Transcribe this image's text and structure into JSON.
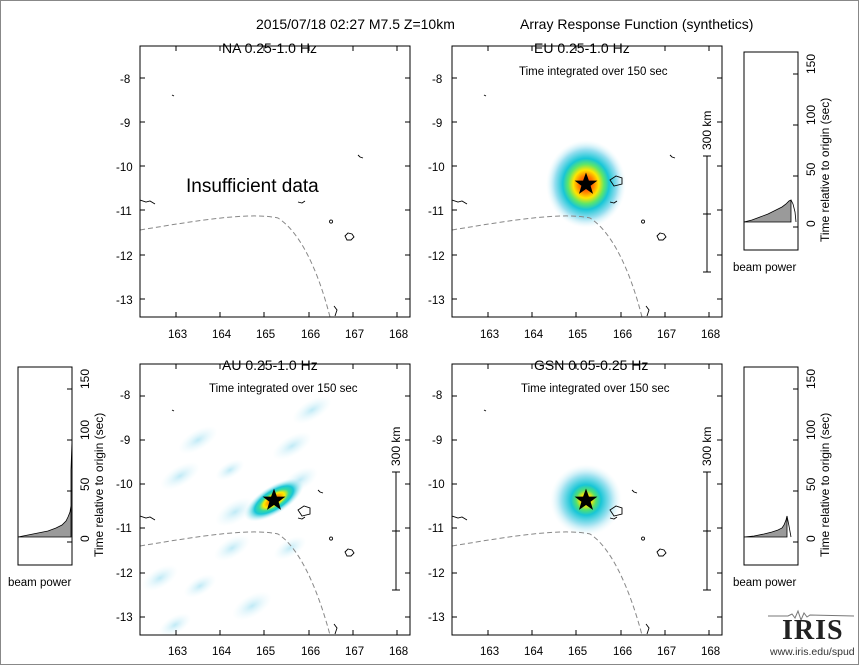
{
  "header": {
    "event": "2015/07/18 02:27  M7.5  Z=10km",
    "title": "Array Response Function (synthetics)"
  },
  "panels": [
    {
      "key": "na",
      "label": "NA  0.25-1.0 Hz",
      "note": "",
      "message": "Insufficient data",
      "has_source": false,
      "scalebar": ""
    },
    {
      "key": "eu",
      "label": "EU  0.25-1.0 Hz",
      "note": "Time integrated over 150 sec",
      "message": "",
      "has_source": true,
      "scalebar": "300 km"
    },
    {
      "key": "au",
      "label": "AU  0.25-1.0 Hz",
      "note": "Time integrated over 150 sec",
      "message": "",
      "has_source": true,
      "scalebar": "300 km"
    },
    {
      "key": "gsn",
      "label": "GSN  0.05-0.25 Hz",
      "note": "Time integrated over 150 sec",
      "message": "",
      "has_source": true,
      "scalebar": "300 km"
    }
  ],
  "map_axes": {
    "x_ticks": [
      "163",
      "164",
      "165",
      "166",
      "167",
      "168"
    ],
    "y_ticks": [
      "-8",
      "-9",
      "-10",
      "-11",
      "-12",
      "-13"
    ]
  },
  "beam_plots": {
    "ylabel": "Time relative to origin (sec)",
    "xlabel": "beam power",
    "ticks": [
      "0",
      "50",
      "100",
      "150"
    ]
  },
  "logo": {
    "text": "IRIS",
    "url": "www.iris.edu/spud"
  },
  "colors": {
    "peak": "#ff2200",
    "mid": "#ffe600",
    "low": "#19c8d8",
    "faint": "#c9eef7",
    "star": "#000000"
  }
}
